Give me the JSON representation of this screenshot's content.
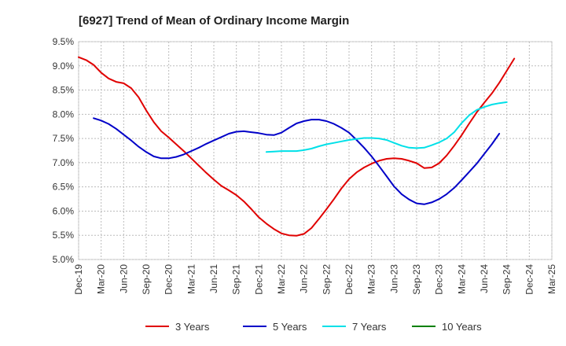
{
  "chart_data": {
    "type": "line",
    "title": "[6927]  Trend of Mean of Ordinary Income Margin",
    "xlabel": "",
    "ylabel": "",
    "x_tick_labels": [
      "Dec-19",
      "Mar-20",
      "Jun-20",
      "Sep-20",
      "Dec-20",
      "Mar-21",
      "Jun-21",
      "Sep-21",
      "Dec-21",
      "Mar-22",
      "Jun-22",
      "Sep-22",
      "Dec-22",
      "Mar-23",
      "Jun-23",
      "Sep-23",
      "Dec-23",
      "Mar-24",
      "Jun-24",
      "Sep-24",
      "Dec-24",
      "Mar-25"
    ],
    "y_tick_labels": [
      "9.5%",
      "9.0%",
      "8.5%",
      "8.0%",
      "7.5%",
      "7.0%",
      "6.5%",
      "6.0%",
      "5.5%",
      "5.0%"
    ],
    "ylim": [
      5.0,
      9.5
    ],
    "grid": true,
    "legend_position": "bottom",
    "series": [
      {
        "name": "3 Years",
        "color": "#e00000",
        "values": [
          9.18,
          9.12,
          9.02,
          8.86,
          8.74,
          8.67,
          8.64,
          8.54,
          8.35,
          8.08,
          7.84,
          7.65,
          7.52,
          7.38,
          7.24,
          7.09,
          6.94,
          6.79,
          6.65,
          6.52,
          6.43,
          6.33,
          6.2,
          6.04,
          5.87,
          5.74,
          5.63,
          5.54,
          5.5,
          5.49,
          5.53,
          5.65,
          5.84,
          6.04,
          6.25,
          6.47,
          6.66,
          6.8,
          6.9,
          6.98,
          7.04,
          7.08,
          7.09,
          7.08,
          7.04,
          6.99,
          6.89,
          6.9,
          6.99,
          7.15,
          7.35,
          7.57,
          7.81,
          8.04,
          8.24,
          8.43,
          8.65,
          8.9,
          9.15
        ]
      },
      {
        "name": "5 Years",
        "color": "#0000c8",
        "values": [
          null,
          null,
          7.92,
          7.87,
          7.8,
          7.7,
          7.58,
          7.46,
          7.33,
          7.22,
          7.13,
          7.09,
          7.09,
          7.12,
          7.17,
          7.24,
          7.31,
          7.39,
          7.46,
          7.53,
          7.6,
          7.64,
          7.65,
          7.63,
          7.61,
          7.58,
          7.57,
          7.62,
          7.72,
          7.81,
          7.86,
          7.89,
          7.89,
          7.86,
          7.8,
          7.72,
          7.62,
          7.47,
          7.31,
          7.13,
          6.93,
          6.72,
          6.51,
          6.35,
          6.24,
          6.16,
          6.14,
          6.18,
          6.25,
          6.35,
          6.48,
          6.64,
          6.81,
          6.98,
          7.18,
          7.38,
          7.6
        ]
      },
      {
        "name": "7 Years",
        "color": "#00e0e8",
        "values": [
          null,
          null,
          null,
          null,
          null,
          null,
          null,
          null,
          null,
          null,
          null,
          null,
          null,
          null,
          null,
          null,
          null,
          null,
          null,
          null,
          null,
          null,
          null,
          null,
          null,
          7.22,
          7.23,
          7.24,
          7.24,
          7.24,
          7.26,
          7.29,
          7.34,
          7.38,
          7.41,
          7.44,
          7.47,
          7.49,
          7.51,
          7.51,
          7.5,
          7.47,
          7.41,
          7.35,
          7.31,
          7.3,
          7.31,
          7.36,
          7.42,
          7.5,
          7.63,
          7.82,
          7.98,
          8.09,
          8.15,
          8.2,
          8.23,
          8.25
        ]
      },
      {
        "name": "10 Years",
        "color": "#008000",
        "values": []
      }
    ]
  }
}
